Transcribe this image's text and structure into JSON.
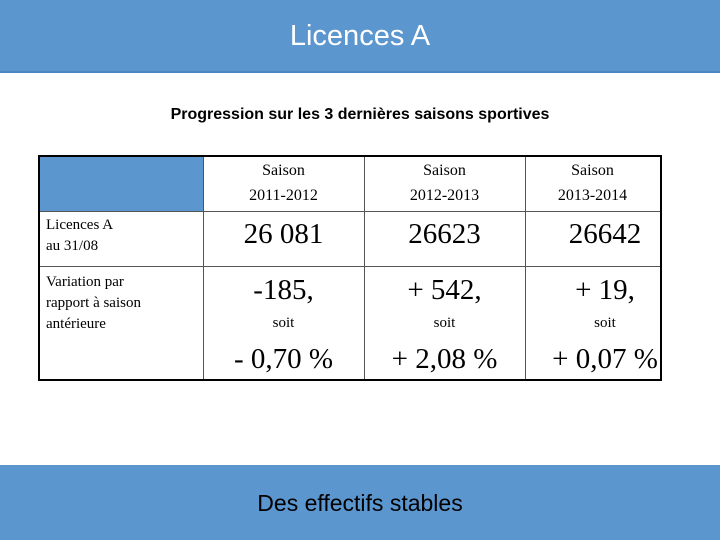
{
  "header": {
    "title": "Licences A"
  },
  "subtitle": "Progression sur les 3 dernières saisons sportives",
  "table": {
    "columns": [
      {
        "line1": "Saison",
        "line2": "2011-2012"
      },
      {
        "line1": "Saison",
        "line2": "2012-2013"
      },
      {
        "line1": "Saison",
        "line2": "2013-2014"
      }
    ],
    "rows": [
      {
        "label_line1": "Licences A",
        "label_line2": "au 31/08",
        "values": [
          "26 081",
          "26623",
          "26642"
        ]
      },
      {
        "label_line1": "Variation par",
        "label_line2": "rapport à saison",
        "label_line3": "antérieure",
        "values": [
          "-185,",
          "+ 542,",
          "+ 19,"
        ],
        "connector": [
          "soit",
          "soit",
          "soit"
        ],
        "percents": [
          "- 0,70 %",
          "+ 2,08 %",
          "+ 0,07 %"
        ]
      }
    ]
  },
  "footer": {
    "text": "Des effectifs stables"
  },
  "colors": {
    "accent": "#5b96cf",
    "border": "#000000"
  }
}
